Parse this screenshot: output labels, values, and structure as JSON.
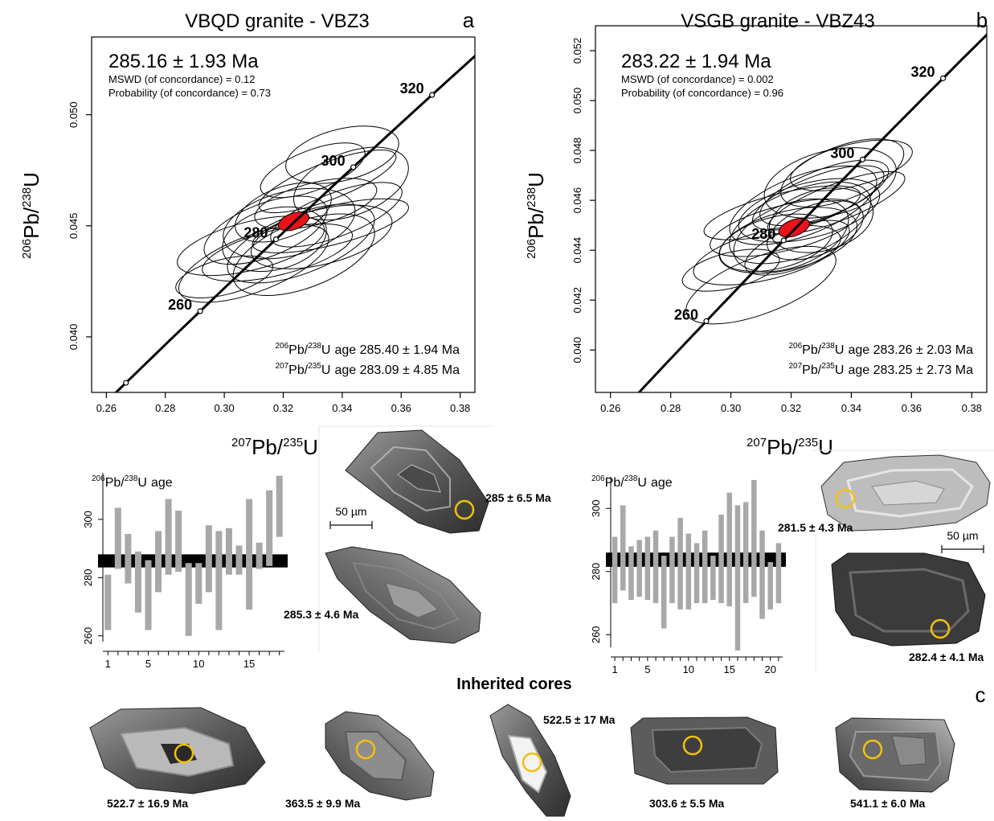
{
  "panel_a": {
    "title": "VBQD granite - VBZ3",
    "letter": "a",
    "age": "285.16 ± 1.93 Ma",
    "mswd": "MSWD (of concordance) = 0.12",
    "prob": "Probability (of concordance) = 0.73",
    "age1_text": "age 285.40 ± 1.94 Ma",
    "age2_text": "age 283.09 ± 4.85 Ma",
    "bar_label_text": "age",
    "zircon1_age": "285 ± 6.5 Ma",
    "zircon2_age": "285.3 ± 4.6 Ma",
    "scale_label": "50 µm"
  },
  "panel_b": {
    "title": "VSGB granite - VBZ43",
    "letter": "b",
    "age": "283.22 ± 1.94 Ma",
    "mswd": "MSWD (of concordance) = 0.002",
    "prob": "Probability (of concordance) = 0.96",
    "age1_text": "age 283.26 ± 2.03 Ma",
    "age2_text": "age 283.25 ± 2.73 Ma",
    "bar_label_text": "age",
    "zircon1_age": "281.5 ± 4.3 Ma",
    "zircon2_age": "282.4 ± 4.1 Ma",
    "scale_label": "50 µm"
  },
  "panel_c": {
    "title": "Inherited cores",
    "letter": "c",
    "cores": [
      "522.7 ± 16.9 Ma",
      "363.5 ± 9.9 Ma",
      "522.5 ± 17 Ma",
      "303.6 ± 5.5 Ma",
      "541.1 ± 6.0 Ma"
    ]
  },
  "iso": {
    "pb206": "206",
    "pb207": "207",
    "u238": "238",
    "u235": "235",
    "pb": "Pb",
    "u": "U",
    "slash": "/"
  },
  "colors": {
    "mean_ellipse": "#e8141a",
    "bar": "#a8a8a8",
    "mean_band": "#000000",
    "spot_ring": "#f2c10f"
  },
  "chart_data": [
    {
      "type": "scatter",
      "subtype": "concordia",
      "title": "VBQD granite - VBZ3",
      "xlabel": "207Pb/235U",
      "ylabel": "206Pb/238U",
      "xlim": [
        0.255,
        0.385
      ],
      "ylim": [
        0.0375,
        0.0535
      ],
      "xticks": [
        0.26,
        0.28,
        0.3,
        0.32,
        0.34,
        0.36,
        0.38
      ],
      "yticks": [
        0.04,
        0.045,
        0.05
      ],
      "concordia_ticks_ma": [
        260,
        280,
        300,
        320
      ],
      "concordia_age": "285.16 ± 1.93 Ma",
      "mean": {
        "x": 0.3235,
        "y": 0.0452
      },
      "ellipses": [
        {
          "x": 0.3,
          "y": 0.0427
        },
        {
          "x": 0.31,
          "y": 0.0433
        },
        {
          "x": 0.318,
          "y": 0.0438
        },
        {
          "x": 0.327,
          "y": 0.0437
        },
        {
          "x": 0.333,
          "y": 0.0445
        },
        {
          "x": 0.338,
          "y": 0.0455
        },
        {
          "x": 0.322,
          "y": 0.0451
        },
        {
          "x": 0.314,
          "y": 0.0448
        },
        {
          "x": 0.331,
          "y": 0.046
        },
        {
          "x": 0.343,
          "y": 0.0469
        },
        {
          "x": 0.34,
          "y": 0.0482
        },
        {
          "x": 0.33,
          "y": 0.0475
        },
        {
          "x": 0.317,
          "y": 0.0444
        },
        {
          "x": 0.32,
          "y": 0.0456
        },
        {
          "x": 0.336,
          "y": 0.045
        },
        {
          "x": 0.326,
          "y": 0.0442
        },
        {
          "x": 0.309,
          "y": 0.0441
        },
        {
          "x": 0.335,
          "y": 0.047
        }
      ]
    },
    {
      "type": "scatter",
      "subtype": "concordia",
      "title": "VSGB granite - VBZ43",
      "xlabel": "207Pb/235U",
      "ylabel": "206Pb/238U",
      "xlim": [
        0.255,
        0.385
      ],
      "ylim": [
        0.0383,
        0.053
      ],
      "xticks": [
        0.26,
        0.28,
        0.3,
        0.32,
        0.34,
        0.36,
        0.38
      ],
      "yticks": [
        0.04,
        0.042,
        0.044,
        0.046,
        0.048,
        0.05,
        0.052
      ],
      "concordia_ticks_ma": [
        260,
        280,
        300,
        320
      ],
      "concordia_age": "283.22 ± 1.94 Ma",
      "mean": {
        "x": 0.321,
        "y": 0.0449
      },
      "ellipses": [
        {
          "x": 0.3,
          "y": 0.0432
        },
        {
          "x": 0.31,
          "y": 0.0426
        },
        {
          "x": 0.318,
          "y": 0.0449
        },
        {
          "x": 0.323,
          "y": 0.0451
        },
        {
          "x": 0.326,
          "y": 0.0456
        },
        {
          "x": 0.329,
          "y": 0.0461
        },
        {
          "x": 0.333,
          "y": 0.0467
        },
        {
          "x": 0.337,
          "y": 0.0471
        },
        {
          "x": 0.34,
          "y": 0.0474
        },
        {
          "x": 0.32,
          "y": 0.0446
        },
        {
          "x": 0.315,
          "y": 0.0443
        },
        {
          "x": 0.322,
          "y": 0.0441
        },
        {
          "x": 0.33,
          "y": 0.0452
        },
        {
          "x": 0.328,
          "y": 0.0448
        },
        {
          "x": 0.317,
          "y": 0.0455
        },
        {
          "x": 0.324,
          "y": 0.0458
        },
        {
          "x": 0.312,
          "y": 0.0438
        },
        {
          "x": 0.335,
          "y": 0.0459
        },
        {
          "x": 0.319,
          "y": 0.0444
        },
        {
          "x": 0.331,
          "y": 0.0463
        }
      ]
    },
    {
      "type": "bar",
      "subtype": "range",
      "title": "206Pb/238U age",
      "x": [
        1,
        2,
        3,
        4,
        5,
        6,
        7,
        8,
        9,
        10,
        11,
        12,
        13,
        14,
        15,
        16,
        17,
        18
      ],
      "xticks": [
        1,
        5,
        10,
        15
      ],
      "ylim": [
        258,
        316
      ],
      "yticks": [
        260,
        280,
        300
      ],
      "mean_band": [
        283.5,
        288.0
      ],
      "lo": [
        262,
        283,
        278,
        268,
        262,
        275,
        281,
        282,
        260,
        271,
        275,
        262,
        281,
        281,
        269,
        283,
        284,
        294
      ],
      "hi": [
        281,
        304,
        295,
        289,
        286,
        296,
        307,
        303,
        285,
        285,
        298,
        296,
        297,
        291,
        307,
        292,
        310,
        315
      ]
    },
    {
      "type": "bar",
      "subtype": "range",
      "title": "206Pb/238U age",
      "x": [
        1,
        2,
        3,
        4,
        5,
        6,
        7,
        8,
        9,
        10,
        11,
        12,
        13,
        14,
        15,
        16,
        17,
        18,
        19,
        20,
        21
      ],
      "xticks": [
        1,
        5,
        10,
        15,
        20
      ],
      "ylim": [
        256,
        310
      ],
      "yticks": [
        260,
        280,
        300
      ],
      "mean_band": [
        281.5,
        286.0
      ],
      "lo": [
        270,
        274,
        271,
        272,
        271,
        270,
        262,
        270,
        268,
        268,
        270,
        270,
        271,
        270,
        269,
        255,
        270,
        272,
        265,
        268,
        270
      ],
      "hi": [
        291,
        301,
        288,
        290,
        291,
        293,
        285,
        291,
        297,
        292,
        289,
        293,
        285,
        298,
        305,
        301,
        302,
        309,
        293,
        283,
        289
      ]
    }
  ]
}
